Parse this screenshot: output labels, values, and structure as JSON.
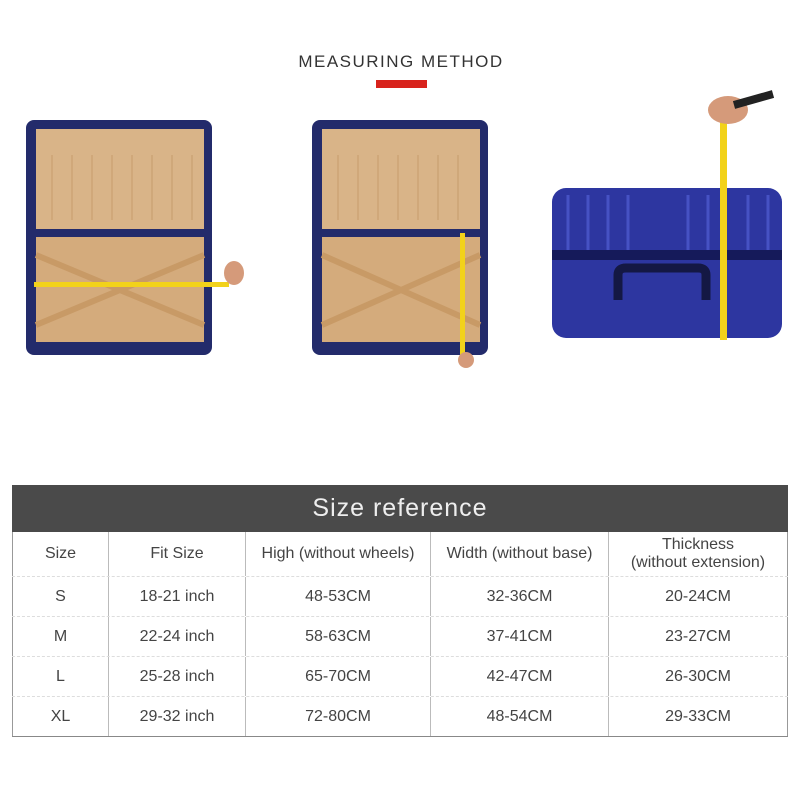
{
  "header": {
    "title": "MEASURING METHOD",
    "accent_color": "#d8231c"
  },
  "photos": [
    {
      "icon": "open-suitcase-width-measure-icon"
    },
    {
      "icon": "open-suitcase-height-measure-icon"
    },
    {
      "icon": "closed-suitcase-thickness-measure-icon"
    }
  ],
  "table": {
    "title": "Size reference",
    "header_color": "#4a4a4a",
    "columns": [
      "Size",
      "Fit Size",
      "High (without wheels)",
      "Width (without base)",
      "Thickness\n(without extension)"
    ],
    "rows": [
      [
        "S",
        "18-21 inch",
        "48-53CM",
        "32-36CM",
        "20-24CM"
      ],
      [
        "M",
        "22-24 inch",
        "58-63CM",
        "37-41CM",
        "23-27CM"
      ],
      [
        "L",
        "25-28 inch",
        "65-70CM",
        "42-47CM",
        "26-30CM"
      ],
      [
        "XL",
        "29-32 inch",
        "72-80CM",
        "48-54CM",
        "29-33CM"
      ]
    ]
  }
}
